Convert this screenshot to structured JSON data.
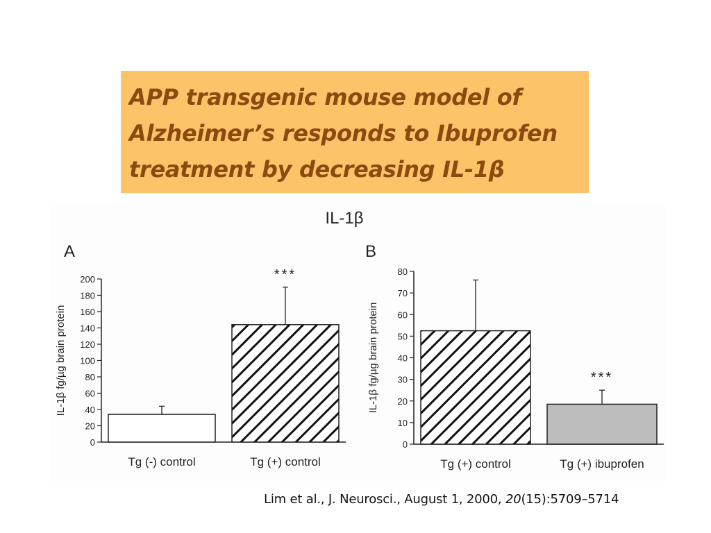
{
  "title": {
    "lines": [
      "APP transgenic mouse model of",
      "Alzheimer’s responds to Ibuprofen",
      "treatment by decreasing IL-1β"
    ]
  },
  "figure": {
    "title": "IL-1β"
  },
  "citation": {
    "prefix": "Lim et al., J. Neurosci., August 1, 2000, ",
    "volume": "20",
    "suffix": "(15):5709–5714"
  },
  "colors": {
    "title_bg": "#fdc368",
    "title_text": "#8b4a0f",
    "gray_bar": "#bdbdbd"
  },
  "chart_data": [
    {
      "type": "bar",
      "panel": "A",
      "ylabel": "IL-1β fg/µg brain protein",
      "ylim": [
        0,
        200
      ],
      "yticks": [
        0,
        20,
        40,
        60,
        80,
        100,
        120,
        140,
        160,
        180,
        200
      ],
      "categories": [
        "Tg (-) control",
        "Tg (+) control"
      ],
      "values": [
        34,
        144
      ],
      "errors": [
        10,
        46
      ],
      "fills": [
        "white",
        "hatched"
      ],
      "annotations": [
        "",
        "***"
      ]
    },
    {
      "type": "bar",
      "panel": "B",
      "ylabel": "IL-1β fg/µg brain protein",
      "ylim": [
        0,
        80
      ],
      "yticks": [
        0,
        10,
        20,
        30,
        40,
        50,
        60,
        70,
        80
      ],
      "categories": [
        "Tg (+) control",
        "Tg (+) ibuprofen"
      ],
      "values": [
        52.5,
        18.5
      ],
      "errors": [
        23.5,
        6.5
      ],
      "fills": [
        "hatched",
        "gray"
      ],
      "annotations": [
        "",
        "***"
      ]
    }
  ]
}
